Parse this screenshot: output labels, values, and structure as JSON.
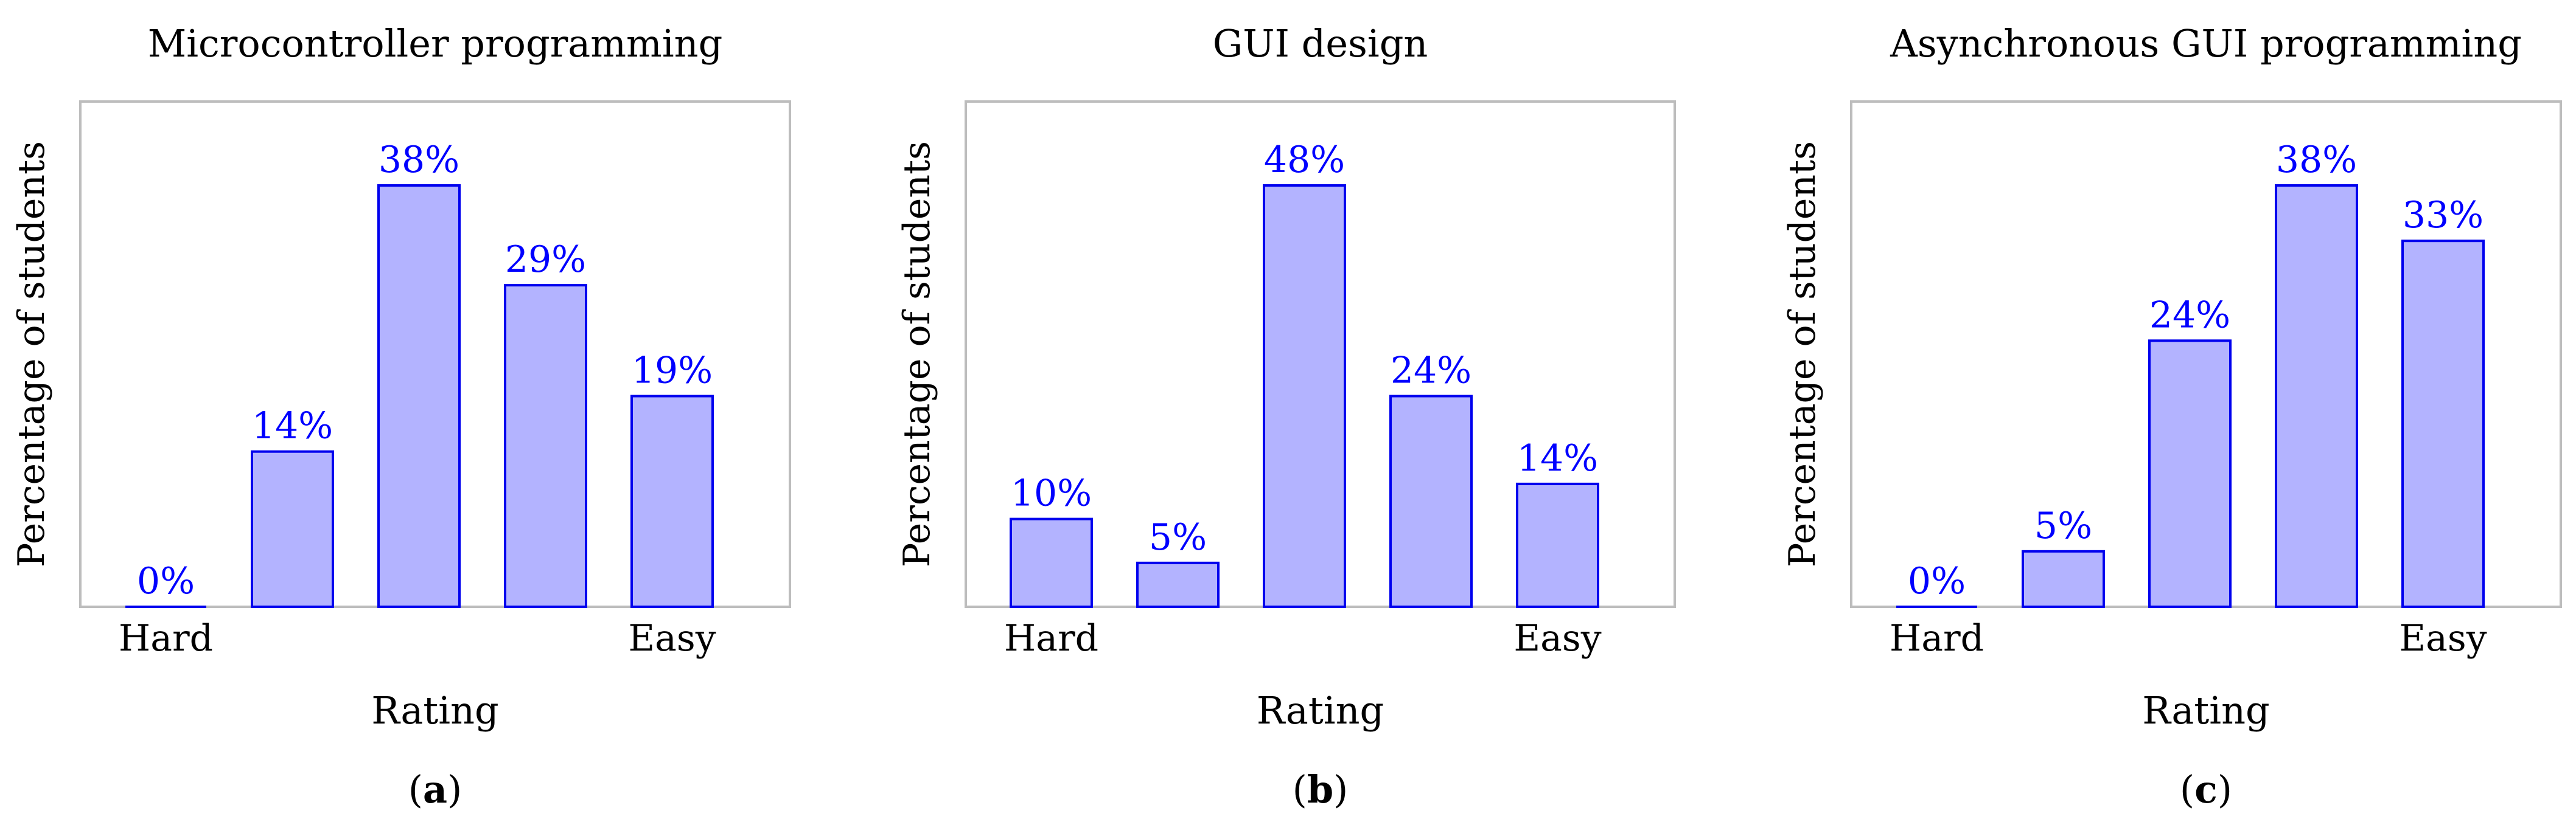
{
  "chart_data": [
    {
      "type": "bar",
      "title": "Microcontroller programming",
      "xlabel": "Rating",
      "ylabel": "Percentage of students",
      "tick_labels": [
        "Hard",
        "",
        "",
        "",
        "Easy"
      ],
      "values": [
        0,
        14,
        38,
        29,
        19
      ],
      "value_labels": [
        "0%",
        "14%",
        "38%",
        "29%",
        "19%"
      ],
      "ylim": [
        0,
        38
      ],
      "grid": false,
      "panel_label": {
        "open": "(",
        "letter": "a",
        "close": ")"
      }
    },
    {
      "type": "bar",
      "title": "GUI design",
      "xlabel": "Rating",
      "ylabel": "Percentage of students",
      "tick_labels": [
        "Hard",
        "",
        "",
        "",
        "Easy"
      ],
      "values": [
        10,
        5,
        48,
        24,
        14
      ],
      "value_labels": [
        "10%",
        "5%",
        "48%",
        "24%",
        "14%"
      ],
      "ylim": [
        0,
        48
      ],
      "grid": false,
      "panel_label": {
        "open": "(",
        "letter": "b",
        "close": ")"
      }
    },
    {
      "type": "bar",
      "title": "Asynchronous GUI programming",
      "xlabel": "Rating",
      "ylabel": "Percentage of students",
      "tick_labels": [
        "Hard",
        "",
        "",
        "",
        "Easy"
      ],
      "values": [
        0,
        5,
        24,
        38,
        33
      ],
      "value_labels": [
        "0%",
        "5%",
        "24%",
        "38%",
        "33%"
      ],
      "ylim": [
        0,
        38
      ],
      "grid": false,
      "panel_label": {
        "open": "(",
        "letter": "c",
        "close": ")"
      }
    }
  ],
  "colors": {
    "bar_fill": "#b3b3ff",
    "bar_stroke": "#0000ee",
    "value_label": "#0000ff",
    "frame": "#bdbdbd",
    "text": "#000000"
  }
}
